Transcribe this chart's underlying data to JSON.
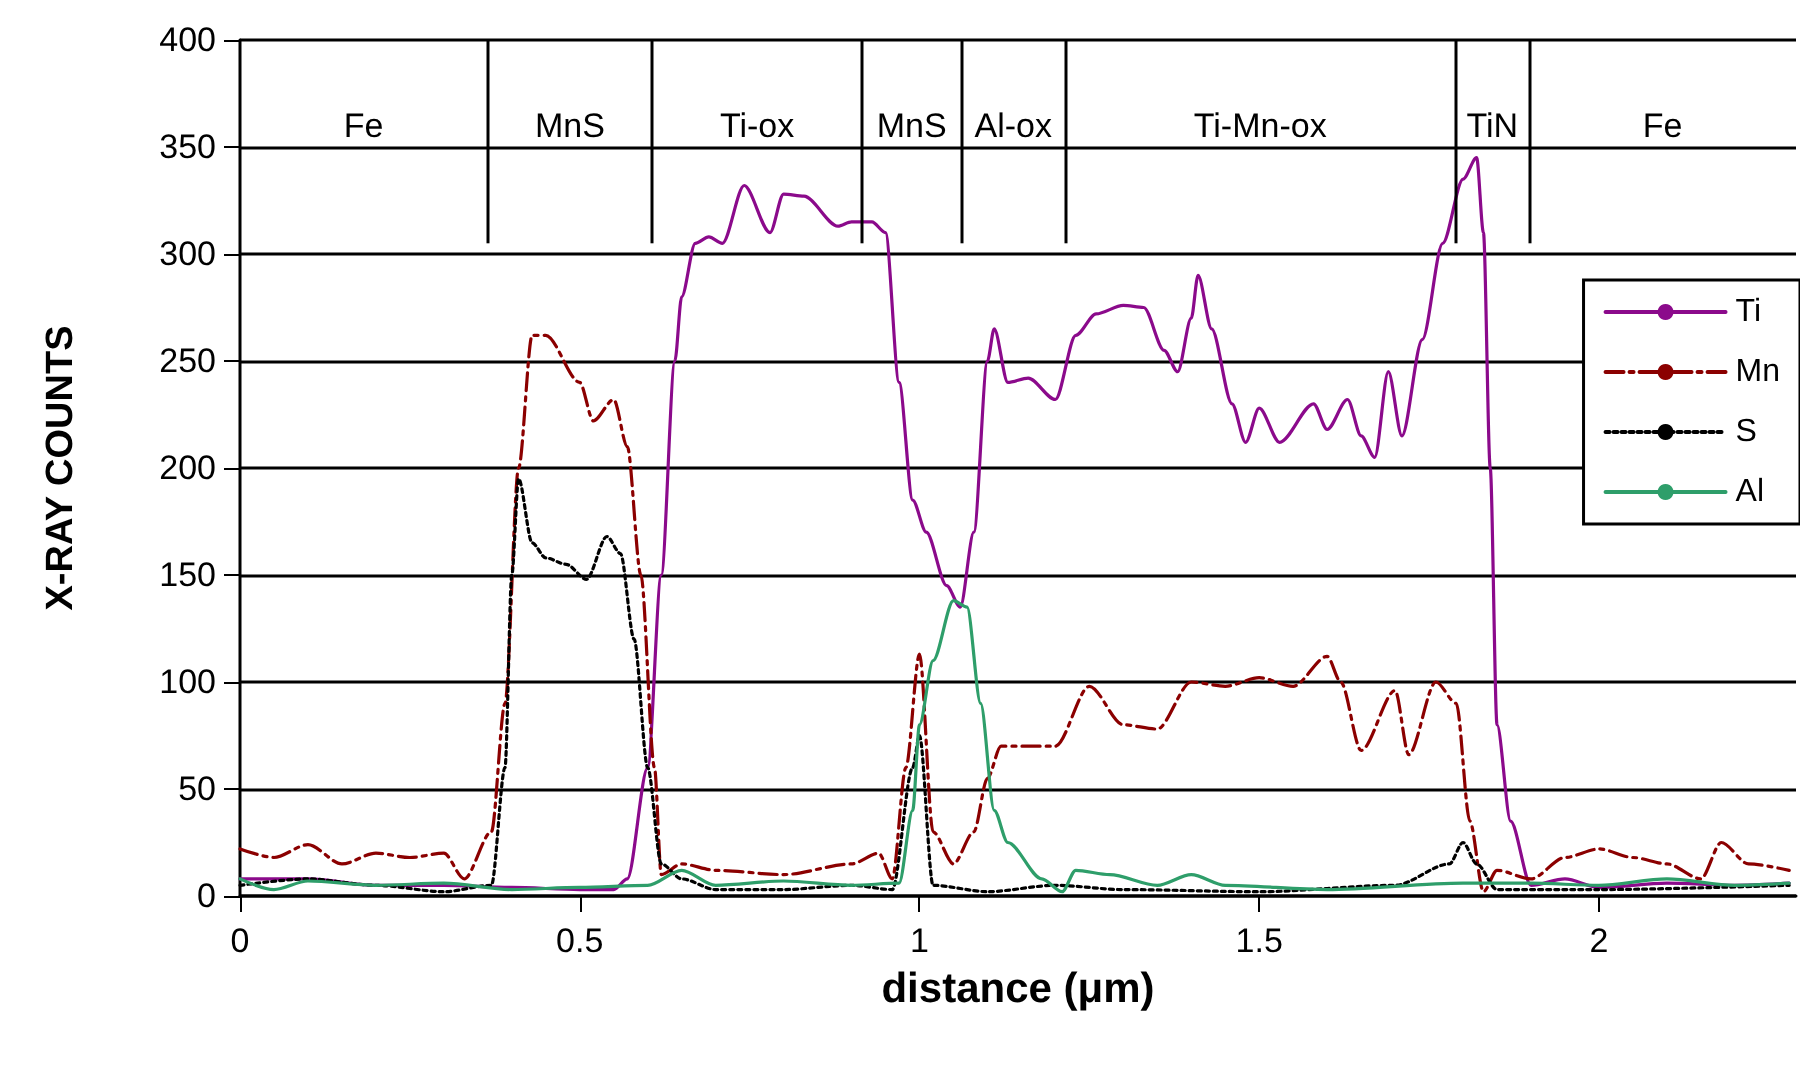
{
  "chart_data": {
    "type": "line",
    "xlabel": "distance (μm)",
    "ylabel": "X-RAY COUNTS",
    "xlim": [
      0,
      2.29
    ],
    "xticks": [
      0,
      0.5,
      1,
      1.5,
      2
    ],
    "ylim": [
      0,
      400
    ],
    "yticks": [
      0,
      50,
      100,
      150,
      200,
      250,
      300,
      350,
      400
    ],
    "grid": "y",
    "legend": "top right",
    "marker": "none",
    "ref_lines": [
      {
        "axis": "x",
        "value": 0.364
      },
      {
        "axis": "x",
        "value": 0.607
      },
      {
        "axis": "x",
        "value": 0.915
      },
      {
        "axis": "x",
        "value": 1.062
      },
      {
        "axis": "x",
        "value": 1.214
      },
      {
        "axis": "x",
        "value": 1.789
      },
      {
        "axis": "x",
        "value": 1.897
      }
    ],
    "annotations": [
      "Fe",
      "MnS",
      "Ti-ox",
      "MnS",
      "Al-ox",
      "Ti-Mn-ox",
      "TiN",
      "Fe"
    ],
    "series": [
      {
        "name": "Ti",
        "color": "#8b0a8b",
        "line_style": "solid",
        "x": [
          0,
          0.1,
          0.2,
          0.3,
          0.4,
          0.5,
          0.55,
          0.57,
          0.6,
          0.62,
          0.64,
          0.65,
          0.67,
          0.69,
          0.71,
          0.742,
          0.78,
          0.8,
          0.83,
          0.88,
          0.9,
          0.93,
          0.95,
          0.97,
          0.99,
          1.01,
          1.04,
          1.06,
          1.08,
          1.1,
          1.11,
          1.13,
          1.16,
          1.2,
          1.23,
          1.26,
          1.3,
          1.33,
          1.36,
          1.38,
          1.4,
          1.41,
          1.43,
          1.46,
          1.48,
          1.5,
          1.53,
          1.58,
          1.6,
          1.63,
          1.65,
          1.67,
          1.69,
          1.71,
          1.74,
          1.77,
          1.8,
          1.82,
          1.83,
          1.84,
          1.85,
          1.87,
          1.9,
          1.95,
          2,
          2.1,
          2.2,
          2.28
        ],
        "values": [
          8,
          8,
          5,
          5,
          4,
          3,
          3,
          8,
          60,
          150,
          250,
          280,
          305,
          308,
          305,
          332,
          310,
          328,
          327,
          313,
          315,
          315,
          310,
          240,
          185,
          170,
          145,
          135,
          170,
          250,
          265,
          240,
          242,
          232,
          262,
          272,
          276,
          275,
          255,
          245,
          270,
          290,
          265,
          230,
          212,
          228,
          212,
          230,
          218,
          232,
          215,
          205,
          245,
          215,
          260,
          305,
          335,
          345,
          310,
          200,
          80,
          35,
          5,
          8,
          4,
          6,
          5,
          6
        ]
      },
      {
        "name": "Mn",
        "color": "#8b0000",
        "line_style": "dashed",
        "x": [
          0,
          0.05,
          0.1,
          0.15,
          0.2,
          0.25,
          0.3,
          0.33,
          0.37,
          0.39,
          0.41,
          0.43,
          0.45,
          0.5,
          0.52,
          0.55,
          0.57,
          0.59,
          0.61,
          0.62,
          0.65,
          0.7,
          0.8,
          0.9,
          0.94,
          0.96,
          0.98,
          1,
          1.02,
          1.05,
          1.08,
          1.1,
          1.12,
          1.2,
          1.25,
          1.3,
          1.35,
          1.4,
          1.45,
          1.5,
          1.55,
          1.6,
          1.62,
          1.65,
          1.7,
          1.72,
          1.76,
          1.79,
          1.81,
          1.83,
          1.85,
          1.9,
          1.95,
          2,
          2.05,
          2.1,
          2.15,
          2.18,
          2.22,
          2.28
        ],
        "values": [
          22,
          18,
          24,
          15,
          20,
          18,
          20,
          8,
          30,
          90,
          200,
          262,
          262,
          240,
          222,
          232,
          210,
          150,
          60,
          10,
          15,
          12,
          10,
          15,
          20,
          8,
          60,
          113,
          30,
          15,
          30,
          55,
          70,
          70,
          98,
          80,
          78,
          100,
          98,
          102,
          98,
          112,
          100,
          68,
          96,
          66,
          100,
          90,
          35,
          2,
          12,
          8,
          18,
          22,
          18,
          15,
          8,
          25,
          15,
          12
        ]
      },
      {
        "name": "S",
        "color": "#000000",
        "line_style": "dotted",
        "x": [
          0,
          0.1,
          0.2,
          0.3,
          0.37,
          0.39,
          0.4,
          0.41,
          0.43,
          0.45,
          0.48,
          0.51,
          0.54,
          0.56,
          0.58,
          0.6,
          0.62,
          0.65,
          0.7,
          0.8,
          0.9,
          0.96,
          0.99,
          1,
          1.02,
          1.1,
          1.2,
          1.3,
          1.5,
          1.7,
          1.78,
          1.8,
          1.82,
          1.85,
          2,
          2.28
        ],
        "values": [
          5,
          8,
          5,
          2,
          5,
          60,
          150,
          195,
          165,
          158,
          155,
          148,
          168,
          160,
          120,
          60,
          15,
          8,
          3,
          3,
          5,
          3,
          60,
          75,
          5,
          2,
          5,
          3,
          2,
          5,
          15,
          25,
          15,
          3,
          3,
          5
        ]
      },
      {
        "name": "Al",
        "color": "#2e9e6a",
        "line_style": "solid",
        "x": [
          0,
          0.05,
          0.1,
          0.2,
          0.3,
          0.4,
          0.5,
          0.6,
          0.65,
          0.7,
          0.8,
          0.9,
          0.97,
          0.99,
          1,
          1.02,
          1.05,
          1.07,
          1.09,
          1.11,
          1.13,
          1.18,
          1.21,
          1.23,
          1.28,
          1.35,
          1.4,
          1.45,
          1.6,
          1.8,
          1.9,
          2,
          2.1,
          2.2,
          2.28
        ],
        "values": [
          8,
          3,
          7,
          5,
          6,
          3,
          4,
          5,
          12,
          5,
          7,
          5,
          6,
          40,
          80,
          110,
          138,
          135,
          90,
          40,
          25,
          8,
          2,
          12,
          10,
          5,
          10,
          5,
          3,
          6,
          6,
          5,
          8,
          5,
          6
        ]
      }
    ]
  }
}
